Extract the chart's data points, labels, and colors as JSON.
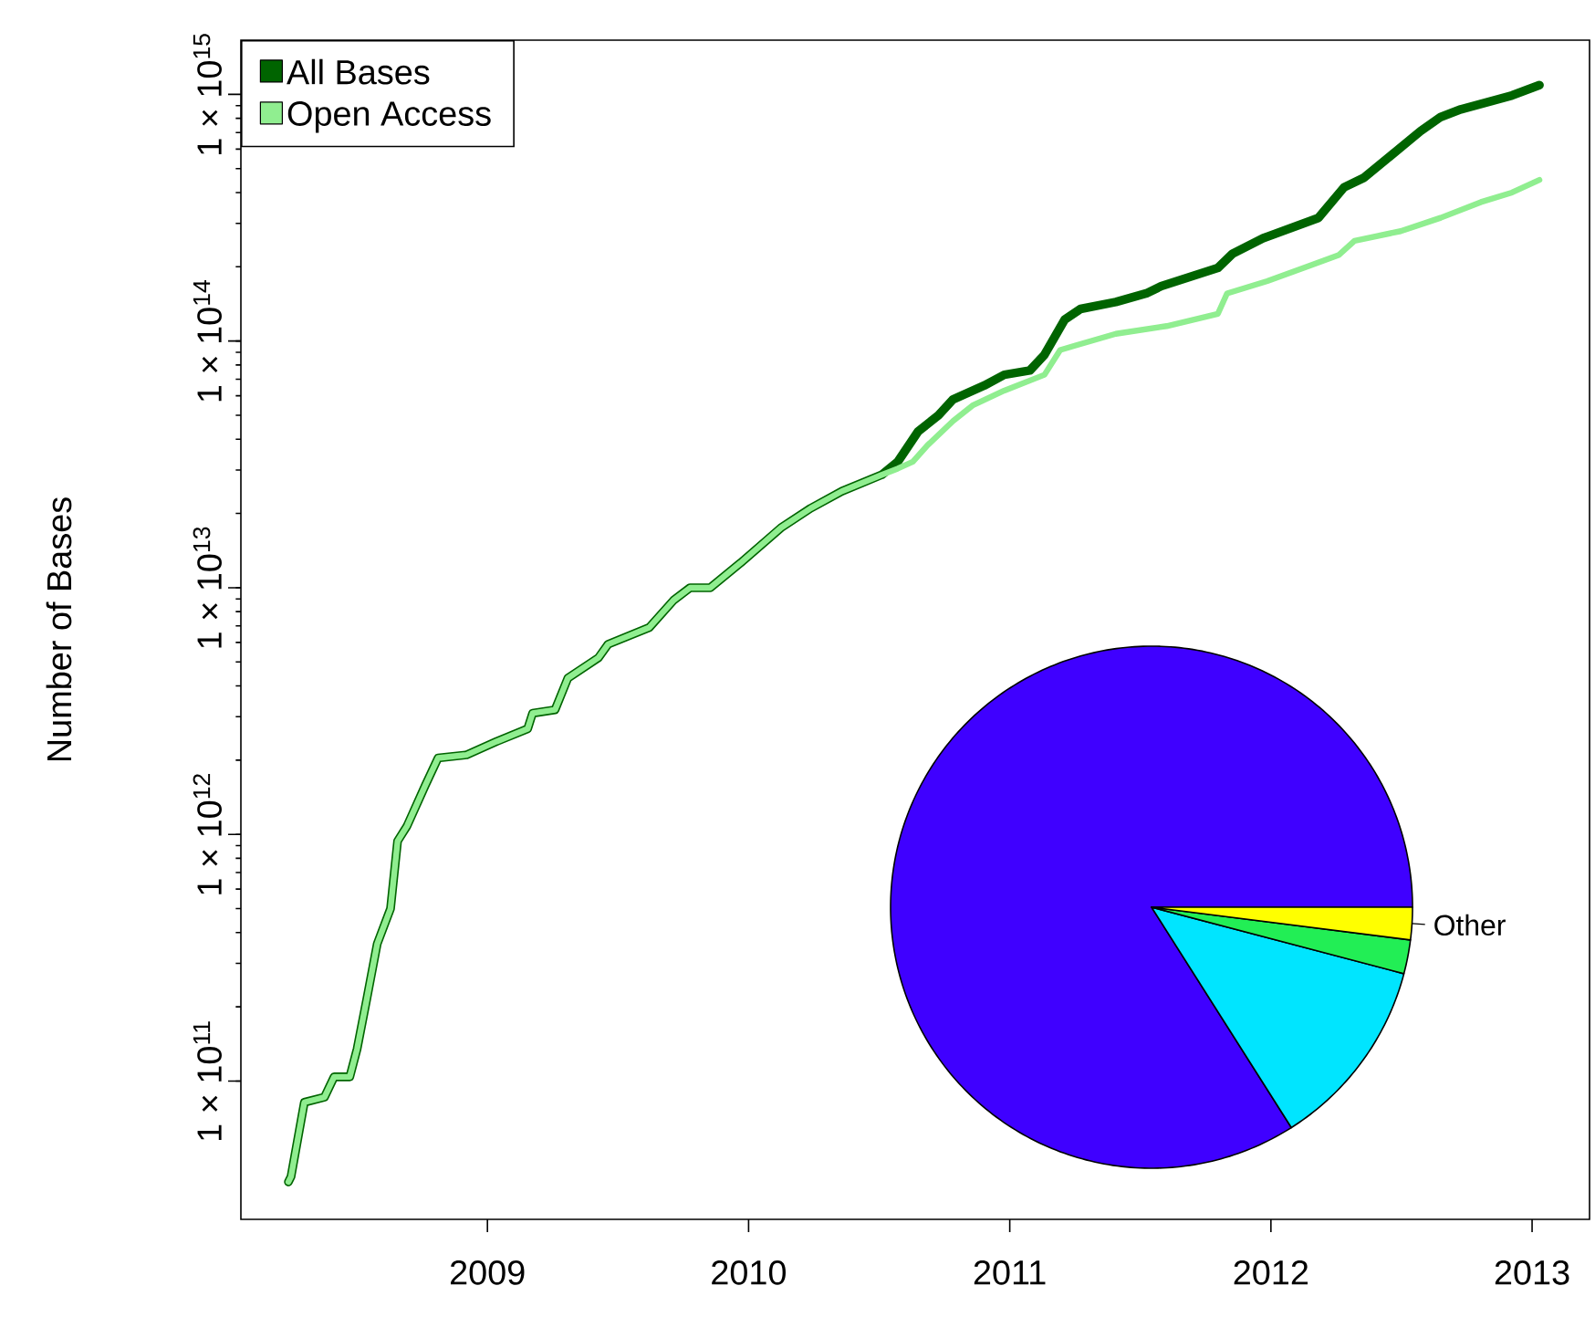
{
  "chart_data": [
    {
      "type": "line",
      "ylabel": "Number of Bases",
      "log": "y",
      "legend": "top left",
      "xlim": [
        2008.056,
        2013.22
      ],
      "xticks": [
        2009,
        2010,
        2011,
        2012,
        2013
      ],
      "ylim": [
        27500000000.0,
        1660000000000000.0
      ],
      "yticks": [
        {
          "value": 100000000000.0,
          "label": "1 × 10$^{11}$"
        },
        {
          "value": 1000000000000.0,
          "label": "1 × 10$^{12}$"
        },
        {
          "value": 10000000000000.0,
          "label": "1 × 10$^{13}$"
        },
        {
          "value": 100000000000000.0,
          "label": "1 × 10$^{14}$"
        },
        {
          "value": 1000000000000000.0,
          "label": "1 × 10$^{15}$"
        }
      ],
      "series": [
        {
          "name": "All Bases",
          "color": "#006400",
          "x": [
            2008.238,
            2008.248,
            2008.299,
            2008.376,
            2008.413,
            2008.473,
            2008.501,
            2008.538,
            2008.578,
            2008.629,
            2008.656,
            2008.692,
            2008.762,
            2008.811,
            2008.92,
            2009.035,
            2009.154,
            2009.173,
            2009.259,
            2009.308,
            2009.425,
            2009.462,
            2009.62,
            2009.713,
            2009.776,
            2009.853,
            2009.969,
            2010.124,
            2010.238,
            2010.357,
            2010.51,
            2010.571,
            2010.649,
            2010.727,
            2010.783,
            2010.902,
            2010.979,
            2011.077,
            2011.133,
            2011.21,
            2011.271,
            2011.406,
            2011.523,
            2011.58,
            2011.797,
            2011.853,
            2011.97,
            2012.182,
            2012.28,
            2012.357,
            2012.455,
            2012.573,
            2012.65,
            2012.727,
            2012.923,
            2013.028
          ],
          "values": [
            39000000000.0,
            41000000000.0,
            82000000000.0,
            86000000000.0,
            104000000000.0,
            104000000000.0,
            135000000000.0,
            215000000000.0,
            360000000000.0,
            500000000000.0,
            940000000000.0,
            1080000000000.0,
            1580000000000.0,
            2040000000000.0,
            2100000000000.0,
            2380000000000.0,
            2680000000000.0,
            3100000000000.0,
            3200000000000.0,
            4300000000000.0,
            5200000000000.0,
            5900000000000.0,
            6900000000000.0,
            8900000000000.0,
            10000000000000.0,
            10000000000000.0,
            12600000000000.0,
            17500000000000.0,
            21000000000000.0,
            24600000000000.0,
            28700000000000.0,
            32400000000000.0,
            43000000000000.0,
            50000000000000.0,
            58000000000000.0,
            66000000000000.0,
            73000000000000.0,
            76000000000000.0,
            88000000000000.0,
            122000000000000.0,
            135000000000000.0,
            144000000000000.0,
            156000000000000.0,
            167000000000000.0,
            198000000000000.0,
            226000000000000.0,
            261000000000000.0,
            316000000000000.0,
            420000000000000.0,
            460000000000000.0,
            560000000000000.0,
            710000000000000.0,
            810000000000000.0,
            870000000000000.0,
            990000000000000.0,
            1090000000000000.0
          ]
        },
        {
          "name": "Open Access",
          "color": "#90ee90",
          "x": [
            2008.238,
            2008.248,
            2008.299,
            2008.376,
            2008.413,
            2008.473,
            2008.501,
            2008.538,
            2008.578,
            2008.629,
            2008.656,
            2008.692,
            2008.762,
            2008.811,
            2008.92,
            2009.035,
            2009.154,
            2009.173,
            2009.259,
            2009.308,
            2009.425,
            2009.462,
            2009.62,
            2009.713,
            2009.776,
            2009.853,
            2009.969,
            2010.124,
            2010.238,
            2010.357,
            2010.51,
            2010.571,
            2010.629,
            2010.685,
            2010.783,
            2010.86,
            2010.979,
            2011.133,
            2011.193,
            2011.252,
            2011.406,
            2011.601,
            2011.797,
            2011.832,
            2011.986,
            2012.147,
            2012.259,
            2012.32,
            2012.497,
            2012.65,
            2012.804,
            2012.923,
            2013.028
          ],
          "values": [
            39000000000.0,
            41000000000.0,
            82000000000.0,
            86000000000.0,
            104000000000.0,
            104000000000.0,
            135000000000.0,
            215000000000.0,
            360000000000.0,
            500000000000.0,
            940000000000.0,
            1080000000000.0,
            1580000000000.0,
            2040000000000.0,
            2100000000000.0,
            2380000000000.0,
            2680000000000.0,
            3100000000000.0,
            3200000000000.0,
            4300000000000.0,
            5200000000000.0,
            5900000000000.0,
            6900000000000.0,
            8900000000000.0,
            10000000000000.0,
            10000000000000.0,
            12600000000000.0,
            17500000000000.0,
            21000000000000.0,
            24600000000000.0,
            28700000000000.0,
            30400000000000.0,
            32400000000000.0,
            37800000000000.0,
            47400000000000.0,
            55000000000000.0,
            63000000000000.0,
            73000000000000.0,
            92000000000000.0,
            96000000000000.0,
            107000000000000.0,
            115000000000000.0,
            129000000000000.0,
            156000000000000.0,
            175000000000000.0,
            202000000000000.0,
            223000000000000.0,
            255000000000000.0,
            279000000000000.0,
            316000000000000.0,
            366000000000000.0,
            400000000000000.0,
            450000000000000.0
          ]
        }
      ]
    },
    {
      "type": "pie",
      "categories": [
        null,
        null,
        null,
        "Other"
      ],
      "values": [
        84,
        11.9,
        2.1,
        2.0
      ],
      "colors": [
        "#3f00ff",
        "#00e5ff",
        "#22ee55",
        "#ffff00"
      ]
    }
  ]
}
